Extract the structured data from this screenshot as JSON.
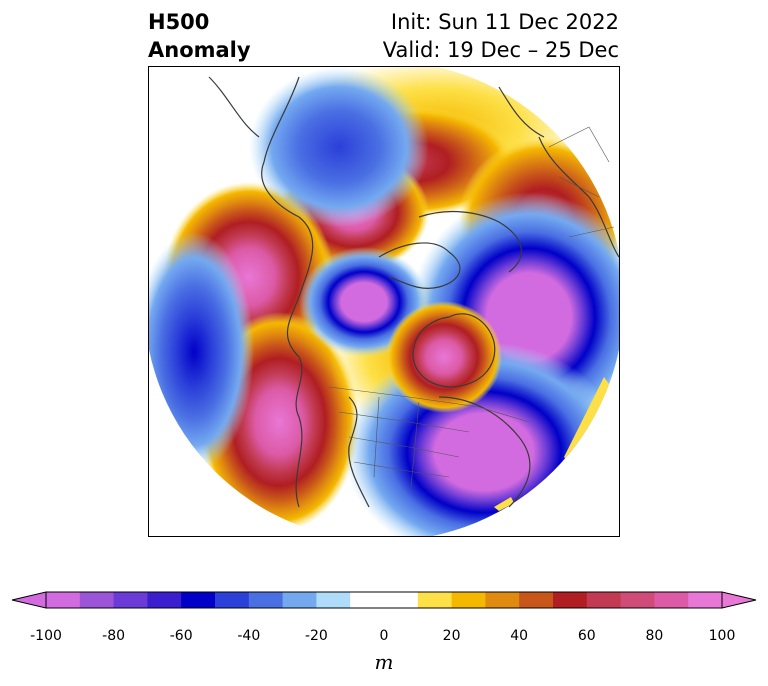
{
  "title": {
    "left_line1": "H500",
    "left_line2": "Anomaly",
    "right_line1": "Init: Sun 11 Dec 2022",
    "right_line2": "Valid: 19 Dec – 25 Dec"
  },
  "colorbar": {
    "units": "m",
    "tick_labels": [
      "-100",
      "-80",
      "-60",
      "-40",
      "-20",
      "0",
      "20",
      "40",
      "60",
      "80",
      "100"
    ],
    "colors": [
      "#d36be0",
      "#9b55d9",
      "#6a3bd6",
      "#3b1fcf",
      "#0000c8",
      "#2b3fd9",
      "#4a6fe3",
      "#74a9f0",
      "#aedcf9",
      "#ffffff",
      "#ffffff",
      "#fde047",
      "#f5b800",
      "#e08a10",
      "#c8561a",
      "#b01e22",
      "#c23a52",
      "#cf4c78",
      "#dc5aa6",
      "#e877d6"
    ],
    "under_color": "#d36be0",
    "over_color": "#e877d6"
  },
  "map": {
    "projection": "north-polar-stereographic",
    "field": "500 hPa geopotential height anomaly"
  }
}
